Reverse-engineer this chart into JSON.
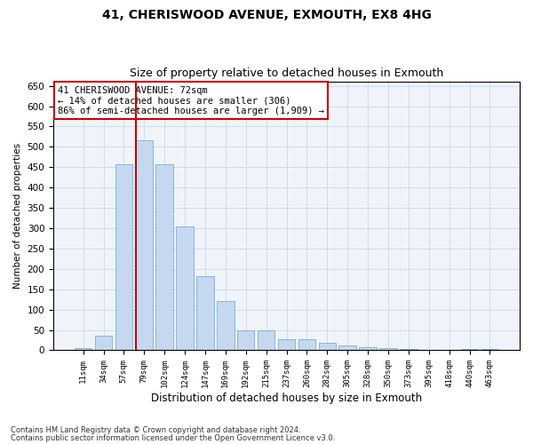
{
  "title": "41, CHERISWOOD AVENUE, EXMOUTH, EX8 4HG",
  "subtitle": "Size of property relative to detached houses in Exmouth",
  "xlabel": "Distribution of detached houses by size in Exmouth",
  "ylabel": "Number of detached properties",
  "categories": [
    "11sqm",
    "34sqm",
    "57sqm",
    "79sqm",
    "102sqm",
    "124sqm",
    "147sqm",
    "169sqm",
    "192sqm",
    "215sqm",
    "237sqm",
    "260sqm",
    "282sqm",
    "305sqm",
    "328sqm",
    "350sqm",
    "373sqm",
    "395sqm",
    "418sqm",
    "440sqm",
    "463sqm"
  ],
  "values": [
    5,
    35,
    457,
    515,
    457,
    305,
    182,
    120,
    50,
    50,
    27,
    27,
    18,
    12,
    8,
    5,
    3,
    2,
    1,
    4,
    3
  ],
  "bar_color": "#c5d8f0",
  "bar_edge_color": "#7bafd4",
  "vline_color": "#cc0000",
  "vline_x_index": 3,
  "annotation_text": "41 CHERISWOOD AVENUE: 72sqm\n← 14% of detached houses are smaller (306)\n86% of semi-detached houses are larger (1,909) →",
  "annotation_box_color": "#ffffff",
  "annotation_box_edge": "#cc0000",
  "ylim": [
    0,
    660
  ],
  "yticks": [
    0,
    50,
    100,
    150,
    200,
    250,
    300,
    350,
    400,
    450,
    500,
    550,
    600,
    650
  ],
  "grid_color": "#c8d8e8",
  "bg_color": "#f0f4fa",
  "footer1": "Contains HM Land Registry data © Crown copyright and database right 2024.",
  "footer2": "Contains public sector information licensed under the Open Government Licence v3.0.",
  "title_fontsize": 10,
  "subtitle_fontsize": 9
}
